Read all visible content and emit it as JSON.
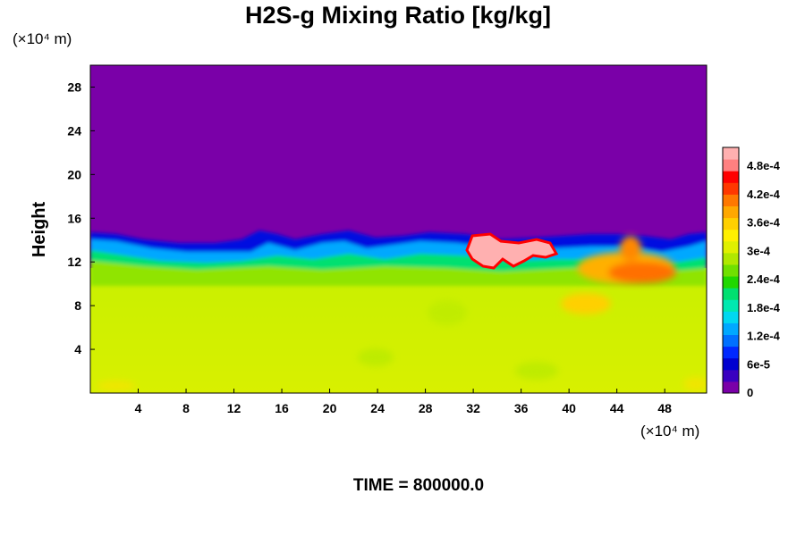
{
  "chart_data": {
    "type": "heatmap",
    "title": "H2S-g Mixing Ratio [kg/kg]",
    "xlabel": "",
    "ylabel": "Height",
    "x_unit": "(×10⁴ m)",
    "y_unit": "(×10⁴ m)",
    "xlim": [
      0,
      51.5
    ],
    "ylim": [
      0,
      30
    ],
    "x_ticks": [
      4,
      8,
      12,
      16,
      20,
      24,
      28,
      32,
      36,
      40,
      44,
      48
    ],
    "y_ticks": [
      4,
      8,
      12,
      16,
      20,
      24,
      28
    ],
    "x_tick_labels": [
      "4",
      "8",
      "12",
      "16",
      "20",
      "24",
      "28",
      "32",
      "36",
      "40",
      "44",
      "48"
    ],
    "y_tick_labels": [
      "4",
      "8",
      "12",
      "16",
      "20",
      "24",
      "28"
    ],
    "colorbar": {
      "min": 0,
      "max": 0.00052,
      "ticks": [
        0,
        6e-05,
        0.00012,
        0.00018,
        0.00024,
        0.0003,
        0.00036,
        0.00042,
        0.00048
      ],
      "tick_labels": [
        "0",
        "6e-5",
        "1.2e-4",
        "1.8e-4",
        "2.4e-4",
        "3e-4",
        "3.6e-4",
        "4.2e-4",
        "4.8e-4"
      ],
      "colors": [
        "#7a00a8",
        "#3a00c0",
        "#0000d0",
        "#0028ff",
        "#0070ff",
        "#00a8ff",
        "#00d8f0",
        "#00e8b0",
        "#00e070",
        "#20d800",
        "#70e000",
        "#b0e800",
        "#e0f000",
        "#fff000",
        "#ffd000",
        "#ffa800",
        "#ff7800",
        "#ff3800",
        "#ff0000",
        "#ff8080",
        "#ffb0b0"
      ]
    },
    "description_regions": {
      "background_value": 0.00035,
      "upper_value": 0,
      "interface_height_approx": 14
    },
    "footer": "TIME = 800000.0"
  }
}
